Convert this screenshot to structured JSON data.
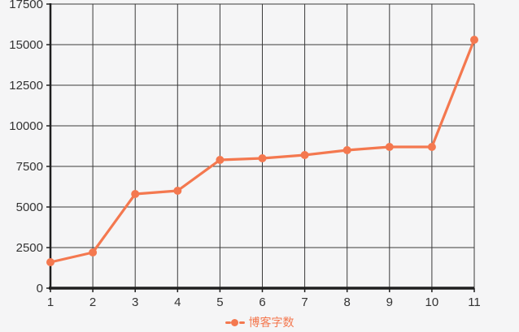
{
  "chart_data": {
    "type": "line",
    "categories": [
      "1",
      "2",
      "3",
      "4",
      "5",
      "6",
      "7",
      "8",
      "9",
      "10",
      "11"
    ],
    "series": [
      {
        "name": "博客字数",
        "values": [
          1600,
          2200,
          5800,
          6000,
          7900,
          8000,
          8200,
          8500,
          8700,
          8700,
          15300
        ]
      }
    ],
    "title": "",
    "xlabel": "",
    "ylabel": "",
    "ylim": [
      0,
      17500
    ],
    "y_ticks": [
      0,
      2500,
      5000,
      7500,
      10000,
      12500,
      15000,
      17500
    ],
    "grid": true,
    "legend_position": "bottom",
    "style": {
      "line_color": "#f4784f",
      "marker_color": "#f4784f",
      "background_color": "#f5f5f6",
      "grid_color": "#3a3a3a",
      "axis_color": "#1f1f1f",
      "tick_label_color": "#333333",
      "legend_text_color": "#f4784f"
    }
  }
}
